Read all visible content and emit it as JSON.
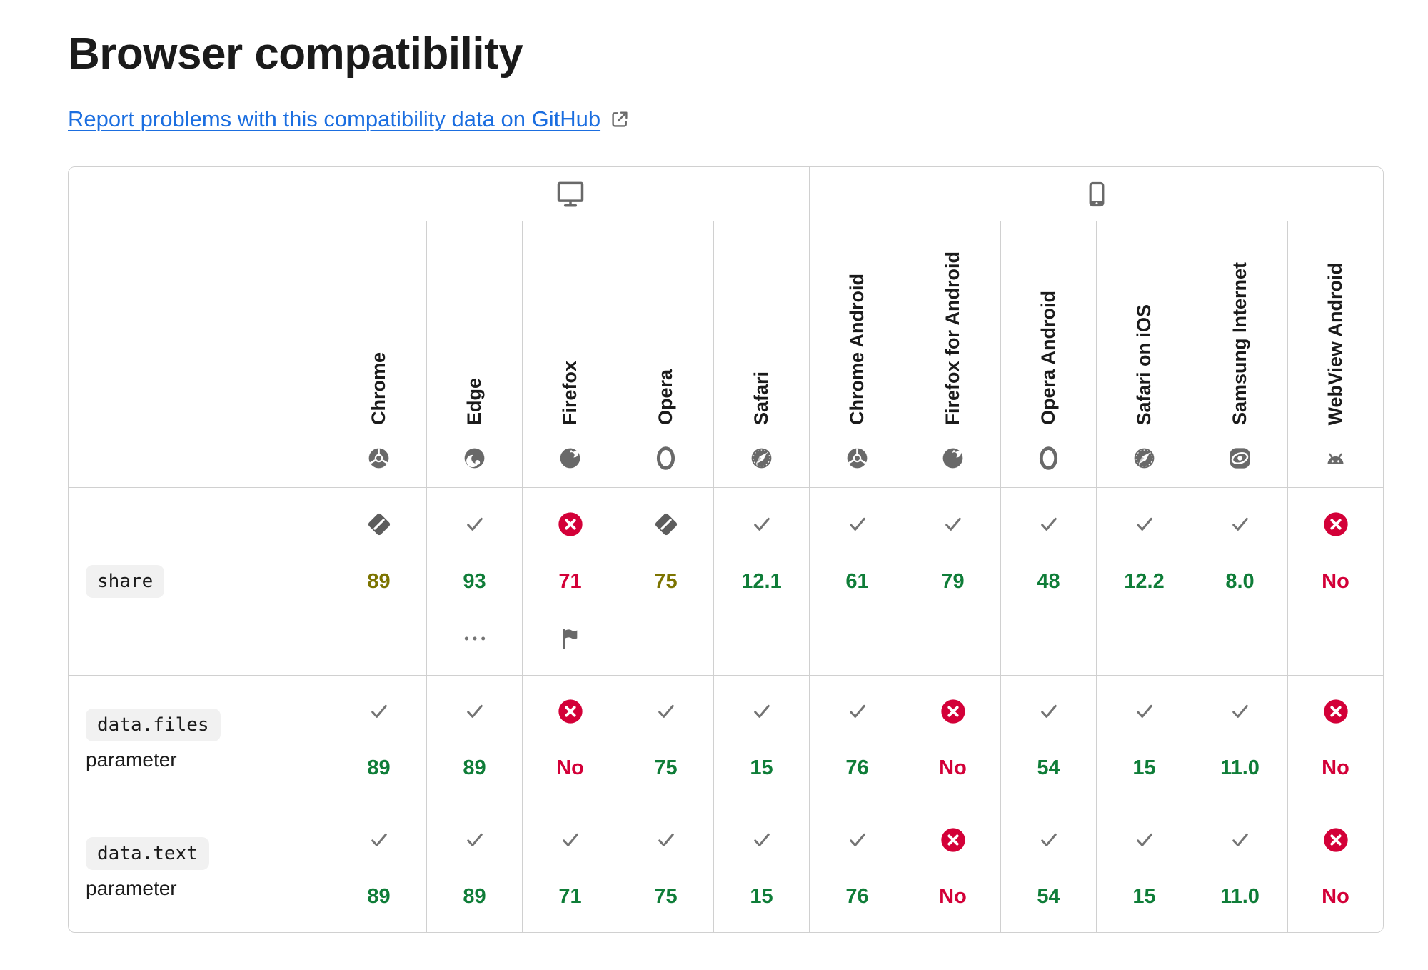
{
  "page": {
    "title": "Browser compatibility",
    "report_link_label": "Report problems with this compatibility data on GitHub"
  },
  "table": {
    "layout": {
      "label_col_width": "368px"
    },
    "platforms": [
      {
        "name": "desktop",
        "icon": "desktop-icon",
        "colspan": 5
      },
      {
        "name": "mobile",
        "icon": "mobile-icon",
        "colspan": 6
      }
    ],
    "browsers": [
      {
        "label": "Chrome",
        "icon": "chrome-icon"
      },
      {
        "label": "Edge",
        "icon": "edge-icon"
      },
      {
        "label": "Firefox",
        "icon": "firefox-icon"
      },
      {
        "label": "Opera",
        "icon": "opera-icon"
      },
      {
        "label": "Safari",
        "icon": "safari-icon"
      },
      {
        "label": "Chrome Android",
        "icon": "chrome-icon"
      },
      {
        "label": "Firefox for Android",
        "icon": "firefox-icon"
      },
      {
        "label": "Opera Android",
        "icon": "opera-icon"
      },
      {
        "label": "Safari on iOS",
        "icon": "safari-icon"
      },
      {
        "label": "Samsung Internet",
        "icon": "samsung-internet-icon"
      },
      {
        "label": "WebView Android",
        "icon": "webview-android-icon"
      }
    ],
    "rows": [
      {
        "feature": {
          "code": "share",
          "suffix": ""
        },
        "cells": [
          {
            "support": "partial",
            "version": "89",
            "extra": ""
          },
          {
            "support": "yes",
            "version": "93",
            "extra": "footnote"
          },
          {
            "support": "no",
            "version": "71",
            "extra": "flag"
          },
          {
            "support": "partial",
            "version": "75",
            "extra": ""
          },
          {
            "support": "yes",
            "version": "12.1",
            "extra": ""
          },
          {
            "support": "yes",
            "version": "61",
            "extra": ""
          },
          {
            "support": "yes",
            "version": "79",
            "extra": ""
          },
          {
            "support": "yes",
            "version": "48",
            "extra": ""
          },
          {
            "support": "yes",
            "version": "12.2",
            "extra": ""
          },
          {
            "support": "yes",
            "version": "8.0",
            "extra": ""
          },
          {
            "support": "no",
            "version": "No",
            "extra": ""
          }
        ]
      },
      {
        "feature": {
          "code": "data.files",
          "suffix": "parameter"
        },
        "cells": [
          {
            "support": "yes",
            "version": "89",
            "extra": ""
          },
          {
            "support": "yes",
            "version": "89",
            "extra": ""
          },
          {
            "support": "no",
            "version": "No",
            "extra": ""
          },
          {
            "support": "yes",
            "version": "75",
            "extra": ""
          },
          {
            "support": "yes",
            "version": "15",
            "extra": ""
          },
          {
            "support": "yes",
            "version": "76",
            "extra": ""
          },
          {
            "support": "no",
            "version": "No",
            "extra": ""
          },
          {
            "support": "yes",
            "version": "54",
            "extra": ""
          },
          {
            "support": "yes",
            "version": "15",
            "extra": ""
          },
          {
            "support": "yes",
            "version": "11.0",
            "extra": ""
          },
          {
            "support": "no",
            "version": "No",
            "extra": ""
          }
        ]
      },
      {
        "feature": {
          "code": "data.text",
          "suffix": "parameter"
        },
        "cells": [
          {
            "support": "yes",
            "version": "89",
            "extra": ""
          },
          {
            "support": "yes",
            "version": "89",
            "extra": ""
          },
          {
            "support": "yes",
            "version": "71",
            "extra": ""
          },
          {
            "support": "yes",
            "version": "75",
            "extra": ""
          },
          {
            "support": "yes",
            "version": "15",
            "extra": ""
          },
          {
            "support": "yes",
            "version": "76",
            "extra": ""
          },
          {
            "support": "no",
            "version": "No",
            "extra": ""
          },
          {
            "support": "yes",
            "version": "54",
            "extra": ""
          },
          {
            "support": "yes",
            "version": "15",
            "extra": ""
          },
          {
            "support": "yes",
            "version": "11.0",
            "extra": ""
          },
          {
            "support": "no",
            "version": "No",
            "extra": ""
          }
        ]
      }
    ],
    "colors": {
      "supported": "#0f7d38",
      "unsupported": "#d30038",
      "partial": "#7c7400",
      "icon_gray": "#696969",
      "border": "#d0d0d0",
      "link_blue": "#1b6ee0",
      "code_chip_bg": "#f1f1f1",
      "text": "#1b1b1b"
    }
  }
}
